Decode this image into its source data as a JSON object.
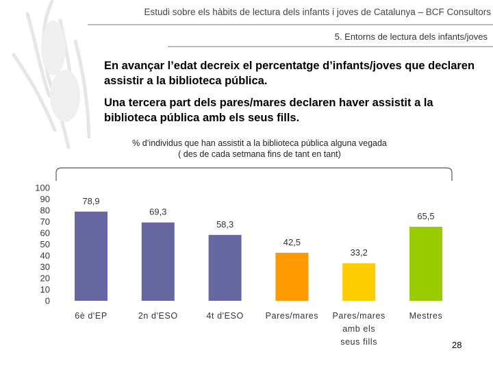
{
  "header": {
    "title": "Estudi sobre els hàbits de lectura dels infants i joves de Catalunya – BCF Consultors",
    "section": "5. Entorns de lectura dels infants/joves"
  },
  "bullets": [
    "En avançar l’edat decreix el percentatge d’infants/joves que declaren assistir a la biblioteca pública.",
    "Una tercera part dels pares/mares declaren haver assistit a la biblioteca pública amb els seus fills."
  ],
  "chart_caption": {
    "line1": "% d’individus que han assistit a la biblioteca pública alguna vegada",
    "line2": "( des de cada setmana fins de tant en tant)"
  },
  "chart_data": {
    "type": "bar",
    "title": "% d’individus que han assistit a la biblioteca pública alguna vegada ( des de cada setmana fins de tant en tant)",
    "categories": [
      [
        "6è d'EP"
      ],
      [
        "2n d'ESO"
      ],
      [
        "4t d'ESO"
      ],
      [
        "Pares/mares"
      ],
      [
        "Pares/mares",
        "amb els",
        "seus fills"
      ],
      [
        "Mestres"
      ]
    ],
    "values": [
      78.9,
      69.3,
      58.3,
      42.5,
      33.2,
      65.5
    ],
    "value_labels": [
      "78,9",
      "69,3",
      "58,3",
      "42,5",
      "33,2",
      "65,5"
    ],
    "colors": [
      "#6666a0",
      "#6666a0",
      "#6666a0",
      "#ff9900",
      "#ffcc00",
      "#99cc00"
    ],
    "ylim": [
      0,
      100
    ],
    "yticks": [
      0,
      10,
      20,
      30,
      40,
      50,
      60,
      70,
      80,
      90,
      100
    ],
    "xlabel": "",
    "ylabel": "",
    "grid": false,
    "legend": "none"
  },
  "page_number": "28"
}
